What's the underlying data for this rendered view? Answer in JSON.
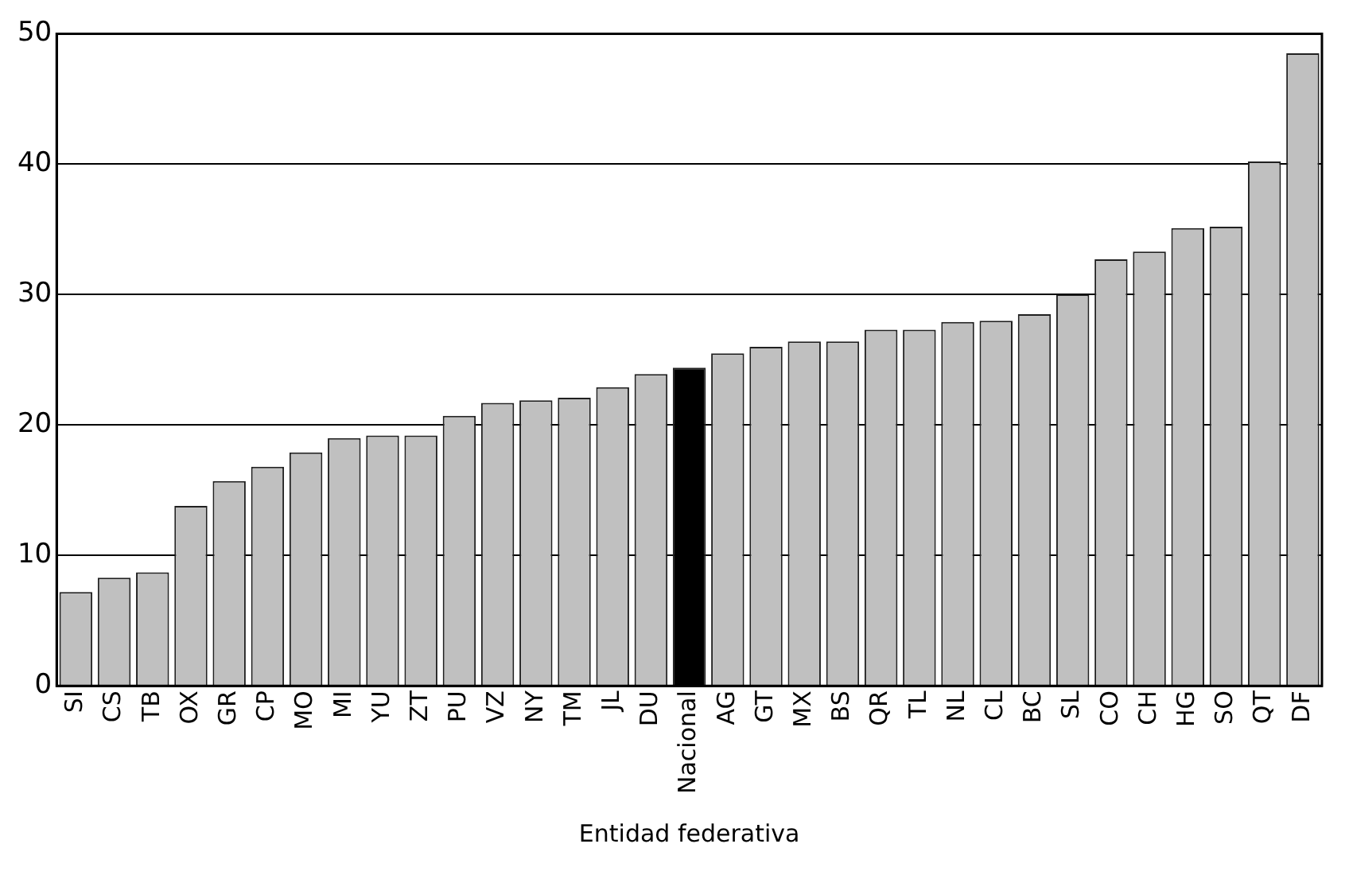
{
  "chart_data": {
    "type": "bar",
    "xlabel": "Entidad federativa",
    "categories": [
      "SI",
      "CS",
      "TB",
      "OX",
      "GR",
      "CP",
      "MO",
      "MI",
      "YU",
      "ZT",
      "PU",
      "VZ",
      "NY",
      "TM",
      "JL",
      "DU",
      "Nacional",
      "AG",
      "GT",
      "MX",
      "BS",
      "QR",
      "TL",
      "NL",
      "CL",
      "BC",
      "SL",
      "CO",
      "CH",
      "HG",
      "SO",
      "QT",
      "DF"
    ],
    "values": [
      7.2,
      8.3,
      8.7,
      13.8,
      15.7,
      16.8,
      17.9,
      19.0,
      19.2,
      19.2,
      20.7,
      21.7,
      21.9,
      22.1,
      22.9,
      23.9,
      24.4,
      25.5,
      26.0,
      26.4,
      26.4,
      27.3,
      27.3,
      27.9,
      28.0,
      28.5,
      30.0,
      32.7,
      33.3,
      35.1,
      35.2,
      40.2,
      48.5
    ],
    "colors": [
      "#c0c0c0",
      "#c0c0c0",
      "#c0c0c0",
      "#c0c0c0",
      "#c0c0c0",
      "#c0c0c0",
      "#c0c0c0",
      "#c0c0c0",
      "#c0c0c0",
      "#c0c0c0",
      "#c0c0c0",
      "#c0c0c0",
      "#c0c0c0",
      "#c0c0c0",
      "#c0c0c0",
      "#c0c0c0",
      "#000000",
      "#c0c0c0",
      "#c0c0c0",
      "#c0c0c0",
      "#c0c0c0",
      "#c0c0c0",
      "#c0c0c0",
      "#c0c0c0",
      "#c0c0c0",
      "#c0c0c0",
      "#c0c0c0",
      "#c0c0c0",
      "#c0c0c0",
      "#c0c0c0",
      "#c0c0c0",
      "#c0c0c0",
      "#c0c0c0"
    ],
    "ylim": [
      0,
      50
    ],
    "yticks": [
      0,
      10,
      20,
      30,
      40,
      50
    ],
    "grid": "y",
    "legend": false
  }
}
